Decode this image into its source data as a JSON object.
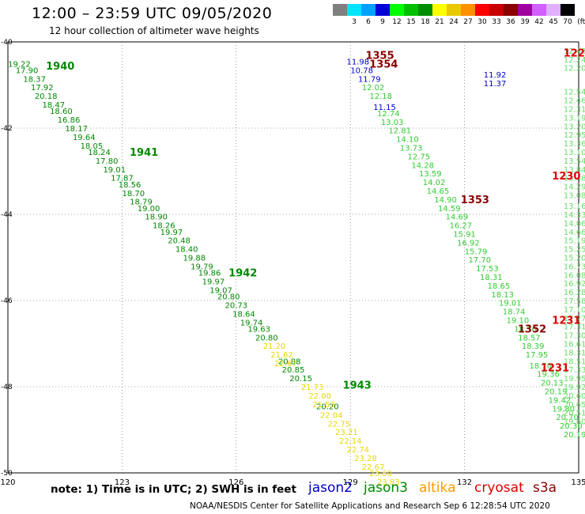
{
  "header": {
    "title": "12:00 – 23:59 UTC 09/05/2020",
    "subtitle": "12 hour collection of altimeter wave heights"
  },
  "legend": {
    "unit": "(ft)",
    "bins": [
      {
        "label": "",
        "color": "#7f7f7f"
      },
      {
        "label": "3",
        "color": "#00e5ff"
      },
      {
        "label": "6",
        "color": "#00a0ff"
      },
      {
        "label": "9",
        "color": "#0000d8"
      },
      {
        "label": "12",
        "color": "#00ff00"
      },
      {
        "label": "15",
        "color": "#00c000"
      },
      {
        "label": "18",
        "color": "#008c00"
      },
      {
        "label": "21",
        "color": "#ffff00"
      },
      {
        "label": "24",
        "color": "#e8c800"
      },
      {
        "label": "27",
        "color": "#ff9000"
      },
      {
        "label": "30",
        "color": "#ff0000"
      },
      {
        "label": "33",
        "color": "#c80000"
      },
      {
        "label": "36",
        "color": "#8c0000"
      },
      {
        "label": "39",
        "color": "#a000a0"
      },
      {
        "label": "42",
        "color": "#d060ff"
      },
      {
        "label": "45",
        "color": "#e0b0ff"
      },
      {
        "label": "70",
        "color": "#000000"
      }
    ]
  },
  "footer": {
    "note": "note:  1) Time is in UTC;  2) SWH is in feet",
    "credit": "NOAA/NESDIS Center for Satellite Applications and Research    Sep  6 12:28:54 UTC 2020",
    "satellites": [
      {
        "name": "jason2",
        "color": "#0000cc"
      },
      {
        "name": "jason3",
        "color": "#008800"
      },
      {
        "name": "altika",
        "color": "#ff9900"
      },
      {
        "name": "cryosat",
        "color": "#dd0000"
      },
      {
        "name": "s3a",
        "color": "#8b0000"
      }
    ]
  },
  "chart_data": {
    "type": "scatter",
    "xlim": [
      120,
      135
    ],
    "ylim": [
      -50,
      -40
    ],
    "x_ticks": [
      "120",
      "123",
      "126",
      "129",
      "132",
      "135"
    ],
    "y_ticks": [
      "-40",
      "-42",
      "-44",
      "-46",
      "-48",
      "-50"
    ],
    "grid": true,
    "series": [
      {
        "color": "#008800",
        "points": [
          [
            120.3,
            -40.5,
            "19.22"
          ],
          [
            120.5,
            -40.65,
            "17.90"
          ],
          [
            120.7,
            -40.85,
            "18.37"
          ],
          [
            120.9,
            -41.05,
            "17.92"
          ],
          [
            121.0,
            -41.25,
            "20.18"
          ],
          [
            121.2,
            -41.45,
            "18.47"
          ],
          [
            121.4,
            -41.6,
            "18.60"
          ],
          [
            121.6,
            -41.8,
            "16.86"
          ],
          [
            121.8,
            -42.0,
            "18.17"
          ],
          [
            122.0,
            -42.2,
            "19.64"
          ],
          [
            122.2,
            -42.4,
            "18.05"
          ],
          [
            122.4,
            -42.55,
            "18.24"
          ],
          [
            122.6,
            -42.75,
            "17.80"
          ],
          [
            122.8,
            -42.95,
            "19.01"
          ],
          [
            123.0,
            -43.15,
            "17.87"
          ],
          [
            123.2,
            -43.3,
            "18.56"
          ],
          [
            123.3,
            -43.5,
            "18.70"
          ],
          [
            123.5,
            -43.7,
            "18.79"
          ],
          [
            123.7,
            -43.85,
            "19.00"
          ],
          [
            123.9,
            -44.05,
            "18.90"
          ],
          [
            124.1,
            -44.25,
            "18.26"
          ],
          [
            124.3,
            -44.4,
            "19.97"
          ],
          [
            124.5,
            -44.6,
            "20.48"
          ],
          [
            124.7,
            -44.8,
            "18.40"
          ],
          [
            124.9,
            -45.0,
            "19.88"
          ],
          [
            125.1,
            -45.2,
            "19.79"
          ],
          [
            125.3,
            -45.35,
            "19.86"
          ],
          [
            125.4,
            -45.55,
            "19.97"
          ],
          [
            125.6,
            -45.75,
            "19.07"
          ],
          [
            125.8,
            -45.9,
            "20.80"
          ],
          [
            126.0,
            -46.1,
            "20.73"
          ],
          [
            126.2,
            -46.3,
            "18.64"
          ],
          [
            126.4,
            -46.5,
            "19.74"
          ],
          [
            126.6,
            -46.65,
            "19.63"
          ],
          [
            126.8,
            -46.85,
            "20.80"
          ],
          [
            127.4,
            -47.4,
            "20.88"
          ],
          [
            127.5,
            -47.6,
            "20.85"
          ],
          [
            127.7,
            -47.8,
            "20.15"
          ],
          [
            128.4,
            -48.45,
            "20.20"
          ]
        ]
      },
      {
        "color": "#e8d800",
        "points": [
          [
            127.0,
            -47.05,
            "21.20"
          ],
          [
            127.2,
            -47.25,
            "21.62"
          ],
          [
            127.3,
            -47.45,
            "22.67"
          ],
          [
            128.0,
            -48.0,
            "21.73"
          ],
          [
            128.2,
            -48.2,
            "22.00"
          ],
          [
            128.3,
            -48.4,
            "21.53"
          ],
          [
            128.5,
            -48.65,
            "22.04"
          ],
          [
            128.7,
            -48.85,
            "22.75"
          ],
          [
            128.9,
            -49.05,
            "23.21"
          ],
          [
            129.0,
            -49.25,
            "22.14"
          ],
          [
            129.2,
            -49.45,
            "22.74"
          ],
          [
            129.4,
            -49.65,
            "23.28"
          ],
          [
            129.6,
            -49.85,
            "22.67"
          ],
          [
            129.8,
            -50.0,
            "23.60"
          ],
          [
            130.0,
            -50.2,
            "23.83"
          ]
        ]
      },
      {
        "color": "#0000cc",
        "points": [
          [
            129.2,
            -40.45,
            "11.98"
          ],
          [
            129.3,
            -40.65,
            "10.78"
          ],
          [
            129.5,
            -40.85,
            "11.79"
          ],
          [
            129.9,
            -41.5,
            "11.15"
          ],
          [
            132.8,
            -40.75,
            "11.92"
          ],
          [
            132.8,
            -40.95,
            "11.37"
          ]
        ]
      },
      {
        "color": "#33cc33",
        "points": [
          [
            129.6,
            -41.05,
            "12.02"
          ],
          [
            129.8,
            -41.25,
            "12.18"
          ],
          [
            130.0,
            -41.65,
            "12.74"
          ],
          [
            130.1,
            -41.85,
            "13.03"
          ],
          [
            130.3,
            -42.05,
            "12.81"
          ],
          [
            130.5,
            -42.25,
            "14.10"
          ],
          [
            130.6,
            -42.45,
            "13.73"
          ],
          [
            130.8,
            -42.65,
            "12.75"
          ],
          [
            130.9,
            -42.85,
            "14.28"
          ],
          [
            131.1,
            -43.05,
            "13.59"
          ],
          [
            131.2,
            -43.25,
            "14.02"
          ],
          [
            131.3,
            -43.45,
            "14.65"
          ],
          [
            131.5,
            -43.65,
            "14.90"
          ],
          [
            131.6,
            -43.85,
            "14.59"
          ],
          [
            131.8,
            -44.05,
            "14.69"
          ],
          [
            131.9,
            -44.25,
            "16.27"
          ],
          [
            132.0,
            -44.45,
            "15.91"
          ],
          [
            132.1,
            -44.65,
            "16.92"
          ],
          [
            132.3,
            -44.85,
            "15.79"
          ],
          [
            132.4,
            -45.05,
            "17.70"
          ],
          [
            132.6,
            -45.25,
            "17.53"
          ],
          [
            132.7,
            -45.45,
            "18.31"
          ],
          [
            132.9,
            -45.65,
            "18.65"
          ],
          [
            133.0,
            -45.85,
            "18.13"
          ],
          [
            133.2,
            -46.05,
            "19.01"
          ],
          [
            133.3,
            -46.25,
            "18.74"
          ],
          [
            133.4,
            -46.45,
            "19.10"
          ],
          [
            133.6,
            -46.65,
            "18.56"
          ],
          [
            133.7,
            -46.85,
            "18.57"
          ],
          [
            133.8,
            -47.05,
            "18.39"
          ],
          [
            133.9,
            -47.25,
            "17.95"
          ],
          [
            134.0,
            -47.5,
            "18.70"
          ],
          [
            134.2,
            -47.7,
            "19.36"
          ],
          [
            134.3,
            -47.9,
            "20.13"
          ],
          [
            134.4,
            -48.1,
            "20.19"
          ],
          [
            134.5,
            -48.3,
            "19.42"
          ],
          [
            134.6,
            -48.5,
            "19.80"
          ],
          [
            134.7,
            -48.7,
            "20.70"
          ],
          [
            134.8,
            -48.9,
            "20.30"
          ],
          [
            134.9,
            -49.1,
            "20.19"
          ]
        ]
      },
      {
        "color": "#66dd66",
        "points": [
          [
            134.9,
            -40.2,
            "12.43"
          ],
          [
            134.9,
            -40.4,
            "12.24"
          ],
          [
            134.9,
            -40.6,
            "12.20"
          ],
          [
            134.9,
            -41.15,
            "12.54"
          ],
          [
            134.9,
            -41.35,
            "12.46"
          ],
          [
            134.9,
            -41.55,
            "12.31"
          ],
          [
            134.9,
            -41.75,
            "13.19"
          ],
          [
            134.9,
            -41.95,
            "13.20"
          ],
          [
            134.9,
            -42.15,
            "12.95"
          ],
          [
            134.9,
            -42.35,
            "13.36"
          ],
          [
            134.9,
            -42.55,
            "13.10"
          ],
          [
            134.9,
            -42.75,
            "13.54"
          ],
          [
            134.9,
            -42.95,
            "13.84"
          ],
          [
            134.9,
            -43.15,
            "13.48"
          ],
          [
            134.9,
            -43.35,
            "14.29"
          ],
          [
            134.9,
            -43.55,
            "13.08"
          ],
          [
            134.9,
            -43.8,
            "13.16"
          ],
          [
            134.9,
            -44.0,
            "14.33"
          ],
          [
            134.9,
            -44.2,
            "14.06"
          ],
          [
            134.9,
            -44.4,
            "14.66"
          ],
          [
            134.9,
            -44.6,
            "15.19"
          ],
          [
            134.9,
            -44.8,
            "15.25"
          ],
          [
            134.9,
            -45.0,
            "15.20"
          ],
          [
            134.9,
            -45.2,
            "16.73"
          ],
          [
            134.9,
            -45.4,
            "16.08"
          ],
          [
            134.9,
            -45.6,
            "16.92"
          ],
          [
            134.9,
            -45.8,
            "16.28"
          ],
          [
            134.9,
            -46.0,
            "17.58"
          ],
          [
            134.9,
            -46.2,
            "17.10"
          ],
          [
            134.9,
            -46.4,
            "17.27"
          ],
          [
            134.9,
            -46.6,
            "17.31"
          ],
          [
            134.9,
            -46.8,
            "17.30"
          ],
          [
            134.9,
            -47.0,
            "16.61"
          ],
          [
            134.9,
            -47.2,
            "18.31"
          ],
          [
            134.9,
            -47.4,
            "18.51"
          ],
          [
            134.9,
            -47.6,
            "17.33"
          ],
          [
            134.9,
            -47.8,
            "19.95"
          ],
          [
            134.9,
            -48.0,
            "19.92"
          ],
          [
            134.9,
            -48.2,
            "20.60"
          ],
          [
            134.9,
            -48.4,
            "20.65"
          ],
          [
            134.9,
            -48.6,
            "20.51"
          ],
          [
            134.9,
            -48.8,
            "19.60"
          ]
        ]
      }
    ],
    "annotations": [
      {
        "x": 121.0,
        "y": -40.55,
        "text": "1940",
        "color": "#008800"
      },
      {
        "x": 123.2,
        "y": -42.55,
        "text": "1941",
        "color": "#008800"
      },
      {
        "x": 125.8,
        "y": -45.35,
        "text": "1942",
        "color": "#008800"
      },
      {
        "x": 128.8,
        "y": -47.95,
        "text": "1943",
        "color": "#008800"
      },
      {
        "x": 129.4,
        "y": -40.3,
        "text": "1355",
        "color": "#8b0000"
      },
      {
        "x": 129.5,
        "y": -40.5,
        "text": "1354",
        "color": "#8b0000"
      },
      {
        "x": 131.9,
        "y": -43.65,
        "text": "1353",
        "color": "#8b0000"
      },
      {
        "x": 133.4,
        "y": -46.65,
        "text": "1352",
        "color": "#8b0000"
      },
      {
        "x": 134.6,
        "y": -40.25,
        "text": "1229",
        "color": "#dd0000"
      },
      {
        "x": 134.3,
        "y": -43.1,
        "text": "1230",
        "color": "#dd0000"
      },
      {
        "x": 134.3,
        "y": -46.45,
        "text": "1231",
        "color": "#dd0000"
      },
      {
        "x": 134.0,
        "y": -47.55,
        "text": "1231",
        "color": "#dd0000"
      }
    ]
  }
}
